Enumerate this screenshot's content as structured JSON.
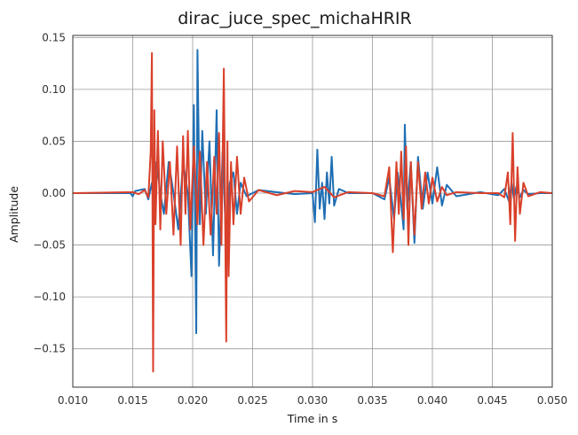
{
  "chart_data": {
    "type": "line",
    "title": "dirac_juce_spec_michaHRIR",
    "xlabel": "Time in s",
    "ylabel": "Amplitude",
    "xlim": [
      0.01,
      0.05
    ],
    "ylim": [
      -0.187,
      0.152
    ],
    "xticks": [
      0.01,
      0.015,
      0.02,
      0.025,
      0.03,
      0.035,
      0.04,
      0.045,
      0.05
    ],
    "xtick_labels": [
      "0.010",
      "0.015",
      "0.020",
      "0.025",
      "0.030",
      "0.035",
      "0.040",
      "0.045",
      "0.050"
    ],
    "yticks": [
      0.15,
      0.1,
      0.05,
      0.0,
      -0.05,
      -0.1,
      -0.15
    ],
    "ytick_labels": [
      "0.15",
      "0.10",
      "0.05",
      "0.00",
      "−0.05",
      "−0.10",
      "−0.15"
    ],
    "grid": true,
    "series": [
      {
        "color": "#1f6fb4",
        "x": [
          0.01,
          0.0148,
          0.015,
          0.0152,
          0.016,
          0.0163,
          0.0166,
          0.0168,
          0.017,
          0.0173,
          0.0176,
          0.018,
          0.0184,
          0.0188,
          0.0192,
          0.0196,
          0.0199,
          0.0201,
          0.0203,
          0.0204,
          0.0206,
          0.0208,
          0.0211,
          0.0214,
          0.0217,
          0.022,
          0.0222,
          0.0225,
          0.0228,
          0.0231,
          0.0234,
          0.0237,
          0.024,
          0.0245,
          0.0255,
          0.027,
          0.0285,
          0.03,
          0.0302,
          0.0304,
          0.0306,
          0.0308,
          0.031,
          0.0312,
          0.0314,
          0.0316,
          0.0318,
          0.0322,
          0.033,
          0.035,
          0.036,
          0.0364,
          0.0368,
          0.0371,
          0.0374,
          0.0376,
          0.0377,
          0.0379,
          0.0382,
          0.0385,
          0.0388,
          0.0392,
          0.0396,
          0.04,
          0.0404,
          0.0408,
          0.0412,
          0.042,
          0.044,
          0.0455,
          0.046,
          0.0464,
          0.0466,
          0.0468,
          0.047,
          0.0473,
          0.0476,
          0.048,
          0.049,
          0.05
        ],
        "y": [
          0.0,
          0.0,
          -0.003,
          0.002,
          0.004,
          -0.006,
          0.01,
          -0.02,
          0.03,
          0.0,
          -0.02,
          0.03,
          0.0,
          -0.035,
          0.03,
          0.0,
          -0.08,
          0.085,
          -0.135,
          0.138,
          -0.03,
          0.06,
          -0.02,
          0.05,
          -0.06,
          0.08,
          -0.07,
          0.04,
          -0.05,
          0.01,
          0.02,
          -0.02,
          0.01,
          -0.003,
          0.003,
          0.001,
          -0.001,
          0.0,
          -0.028,
          0.042,
          -0.015,
          0.01,
          -0.025,
          0.02,
          -0.01,
          0.035,
          -0.012,
          0.004,
          0.0,
          0.0,
          -0.006,
          0.015,
          -0.025,
          0.02,
          -0.01,
          -0.035,
          0.066,
          -0.015,
          0.03,
          -0.048,
          0.035,
          -0.015,
          0.02,
          -0.01,
          0.025,
          -0.012,
          0.008,
          -0.003,
          0.001,
          -0.002,
          0.004,
          -0.008,
          0.01,
          -0.005,
          0.006,
          -0.004,
          0.003,
          -0.001,
          0.0,
          0.0
        ]
      },
      {
        "color": "#d9402a",
        "x": [
          0.01,
          0.015,
          0.0155,
          0.016,
          0.0163,
          0.0165,
          0.0166,
          0.0167,
          0.0168,
          0.0169,
          0.0171,
          0.0173,
          0.0175,
          0.0178,
          0.0181,
          0.0184,
          0.0187,
          0.019,
          0.0192,
          0.0194,
          0.0196,
          0.0198,
          0.0201,
          0.0204,
          0.0206,
          0.0209,
          0.0212,
          0.0215,
          0.0218,
          0.022,
          0.0222,
          0.0224,
          0.0226,
          0.0228,
          0.0229,
          0.023,
          0.0232,
          0.0234,
          0.0237,
          0.024,
          0.0243,
          0.0247,
          0.0255,
          0.027,
          0.0285,
          0.03,
          0.031,
          0.0318,
          0.033,
          0.035,
          0.036,
          0.0364,
          0.0367,
          0.037,
          0.0372,
          0.0374,
          0.0376,
          0.0378,
          0.038,
          0.0382,
          0.0385,
          0.0388,
          0.0391,
          0.0394,
          0.0397,
          0.04,
          0.0404,
          0.0408,
          0.0412,
          0.042,
          0.044,
          0.0455,
          0.046,
          0.0463,
          0.0465,
          0.0467,
          0.0469,
          0.0471,
          0.0473,
          0.0476,
          0.048,
          0.049,
          0.05
        ],
        "y": [
          0.0,
          0.001,
          -0.001,
          0.003,
          -0.004,
          0.04,
          0.135,
          -0.172,
          0.08,
          -0.03,
          0.06,
          -0.035,
          0.05,
          -0.02,
          0.03,
          -0.04,
          0.045,
          -0.05,
          0.055,
          -0.02,
          0.06,
          -0.035,
          0.045,
          -0.03,
          0.04,
          -0.05,
          0.03,
          -0.04,
          0.035,
          -0.02,
          0.058,
          -0.05,
          0.12,
          -0.143,
          0.05,
          -0.08,
          0.03,
          -0.03,
          0.035,
          -0.02,
          0.015,
          -0.008,
          0.003,
          -0.002,
          0.002,
          0.001,
          0.006,
          -0.004,
          0.001,
          0.0,
          -0.003,
          0.025,
          -0.057,
          0.03,
          -0.02,
          0.04,
          -0.025,
          0.045,
          -0.05,
          0.03,
          -0.04,
          0.03,
          -0.015,
          0.02,
          -0.01,
          0.015,
          -0.008,
          0.006,
          -0.002,
          0.001,
          0.0,
          0.0,
          -0.004,
          0.02,
          -0.03,
          0.058,
          -0.046,
          0.025,
          -0.02,
          0.01,
          -0.003,
          0.001,
          0.0
        ]
      }
    ]
  }
}
